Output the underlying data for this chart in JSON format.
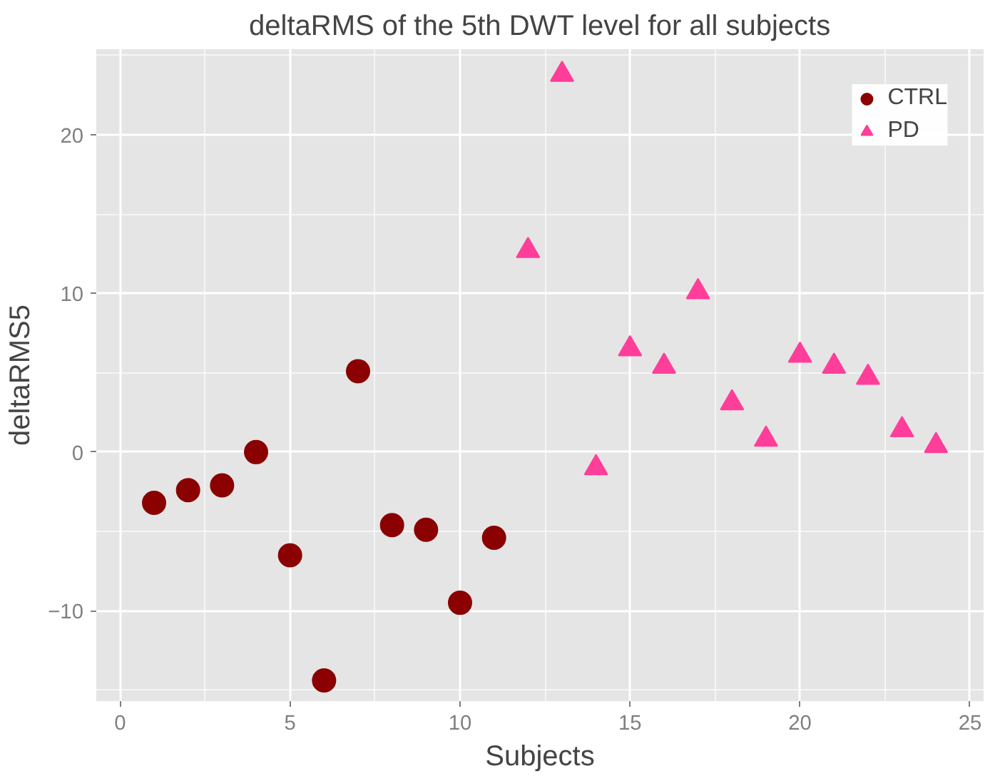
{
  "chart_data": {
    "type": "scatter",
    "title": "deltaRMS of the 5th DWT level for all subjects",
    "xlabel": "Subjects",
    "ylabel": "deltaRMS5",
    "xlim": [
      -0.7,
      25.4
    ],
    "ylim": [
      -15.7,
      25.4
    ],
    "xticks": [
      0,
      5,
      10,
      15,
      20,
      25
    ],
    "yticks": [
      -10,
      0,
      10,
      20
    ],
    "grid": true,
    "legend": "top right",
    "series": [
      {
        "name": "CTRL",
        "color": "#8b0000",
        "marker": "circle",
        "x": [
          1,
          2,
          3,
          4,
          5,
          6,
          7,
          8,
          9,
          10,
          11
        ],
        "values": [
          -3.2,
          -2.4,
          -2.1,
          0,
          -6.5,
          -14.4,
          5.1,
          -4.6,
          -4.9,
          -9.5,
          -5.4
        ]
      },
      {
        "name": "PD",
        "color": "#ff3e9a",
        "marker": "triangle",
        "x": [
          12,
          13,
          14,
          15,
          16,
          17,
          18,
          19,
          20,
          21,
          22,
          23,
          24
        ],
        "values": [
          12.7,
          23.8,
          -1.0,
          6.5,
          5.4,
          10.1,
          3.1,
          0.8,
          6.1,
          5.4,
          4.7,
          1.4,
          0.4
        ]
      }
    ]
  }
}
